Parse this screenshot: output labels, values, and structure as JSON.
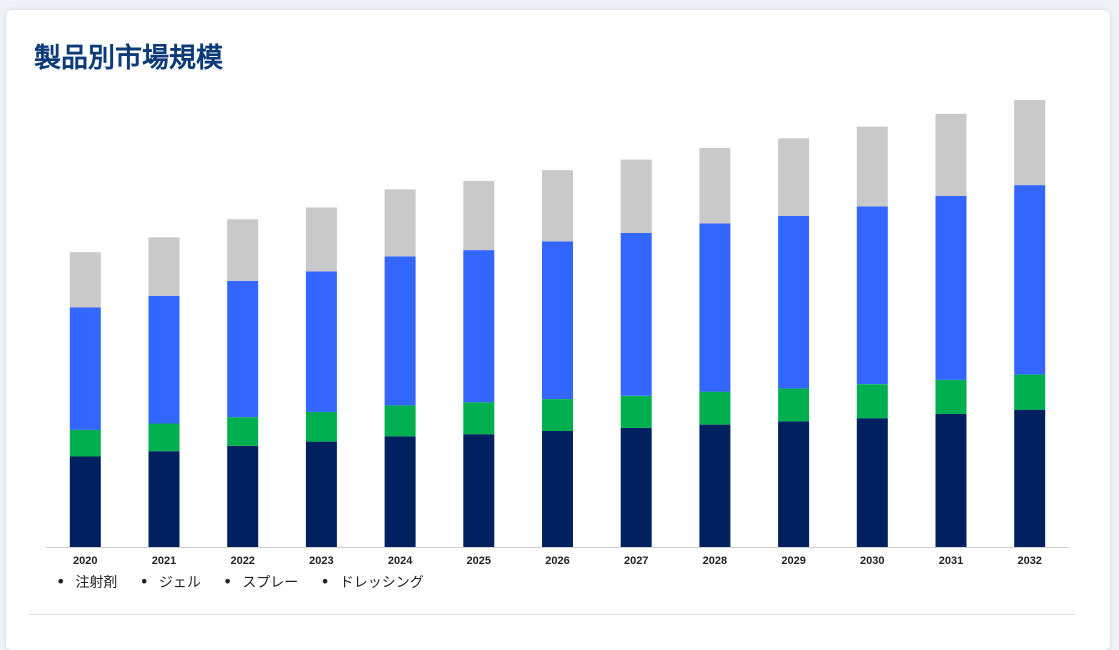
{
  "page": {
    "title": "製品別市場規模"
  },
  "chart_data": {
    "type": "bar",
    "stacked": true,
    "title": "製品別市場規模",
    "xlabel": "",
    "ylabel": "",
    "ylim": [
      0,
      420
    ],
    "grid": false,
    "legend_position": "bottom-left",
    "categories": [
      "2020",
      "2021",
      "2022",
      "2023",
      "2024",
      "2025",
      "2026",
      "2027",
      "2028",
      "2029",
      "2030",
      "2031",
      "2032"
    ],
    "series": [
      {
        "name": "注射剤",
        "color": "#002060",
        "values": [
          85,
          90,
          95,
          99,
          104,
          106,
          109,
          112,
          115,
          118,
          121,
          125,
          129
        ]
      },
      {
        "name": "ジェル",
        "color": "#00b050",
        "values": [
          25,
          26,
          27,
          28,
          29,
          30,
          30,
          30,
          31,
          31,
          32,
          32,
          33
        ]
      },
      {
        "name": "スプレー",
        "color": "#3366ff",
        "values": [
          115,
          120,
          128,
          132,
          140,
          143,
          148,
          153,
          158,
          162,
          167,
          173,
          178
        ]
      },
      {
        "name": "ドレッシング",
        "color": "#c9c9c9",
        "values": [
          52,
          55,
          58,
          60,
          63,
          65,
          67,
          69,
          71,
          73,
          75,
          77,
          80
        ]
      }
    ]
  }
}
